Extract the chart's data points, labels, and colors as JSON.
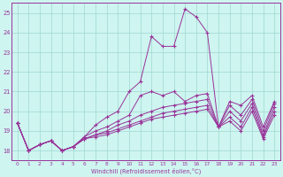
{
  "xlabel": "Windchill (Refroidissement éolien,°C)",
  "xlim": [
    -0.5,
    23.5
  ],
  "ylim": [
    17.5,
    25.5
  ],
  "yticks": [
    18,
    19,
    20,
    21,
    22,
    23,
    24,
    25
  ],
  "xticks": [
    0,
    1,
    2,
    3,
    4,
    5,
    6,
    7,
    8,
    9,
    10,
    11,
    12,
    13,
    14,
    15,
    16,
    17,
    18,
    19,
    20,
    21,
    22,
    23
  ],
  "background_color": "#cef5f0",
  "grid_color": "#a0d8d0",
  "line_color": "#993399",
  "series": [
    [
      19.4,
      18.0,
      18.3,
      18.5,
      18.0,
      18.2,
      18.7,
      19.3,
      19.7,
      20.0,
      21.0,
      21.5,
      23.8,
      23.3,
      23.3,
      25.2,
      24.8,
      24.0,
      19.2,
      20.5,
      20.3,
      20.8,
      19.2,
      20.5
    ],
    [
      19.4,
      18.0,
      18.3,
      18.5,
      18.0,
      18.2,
      18.7,
      19.0,
      19.2,
      19.5,
      19.8,
      20.8,
      21.0,
      20.8,
      21.0,
      20.5,
      20.8,
      20.9,
      19.2,
      20.3,
      19.8,
      20.6,
      19.0,
      20.4
    ],
    [
      19.4,
      18.0,
      18.3,
      18.5,
      18.0,
      18.2,
      18.6,
      18.8,
      19.0,
      19.3,
      19.5,
      19.8,
      20.0,
      20.2,
      20.3,
      20.4,
      20.5,
      20.6,
      19.2,
      20.0,
      19.5,
      20.4,
      18.8,
      20.2
    ],
    [
      19.4,
      18.0,
      18.3,
      18.5,
      18.0,
      18.2,
      18.6,
      18.8,
      18.9,
      19.1,
      19.3,
      19.5,
      19.7,
      19.9,
      20.0,
      20.1,
      20.2,
      20.3,
      19.2,
      19.7,
      19.2,
      20.2,
      18.7,
      20.0
    ],
    [
      19.4,
      18.0,
      18.3,
      18.5,
      18.0,
      18.2,
      18.6,
      18.7,
      18.8,
      19.0,
      19.2,
      19.4,
      19.6,
      19.7,
      19.8,
      19.9,
      20.0,
      20.1,
      19.2,
      19.5,
      19.0,
      20.0,
      18.6,
      19.8
    ]
  ]
}
